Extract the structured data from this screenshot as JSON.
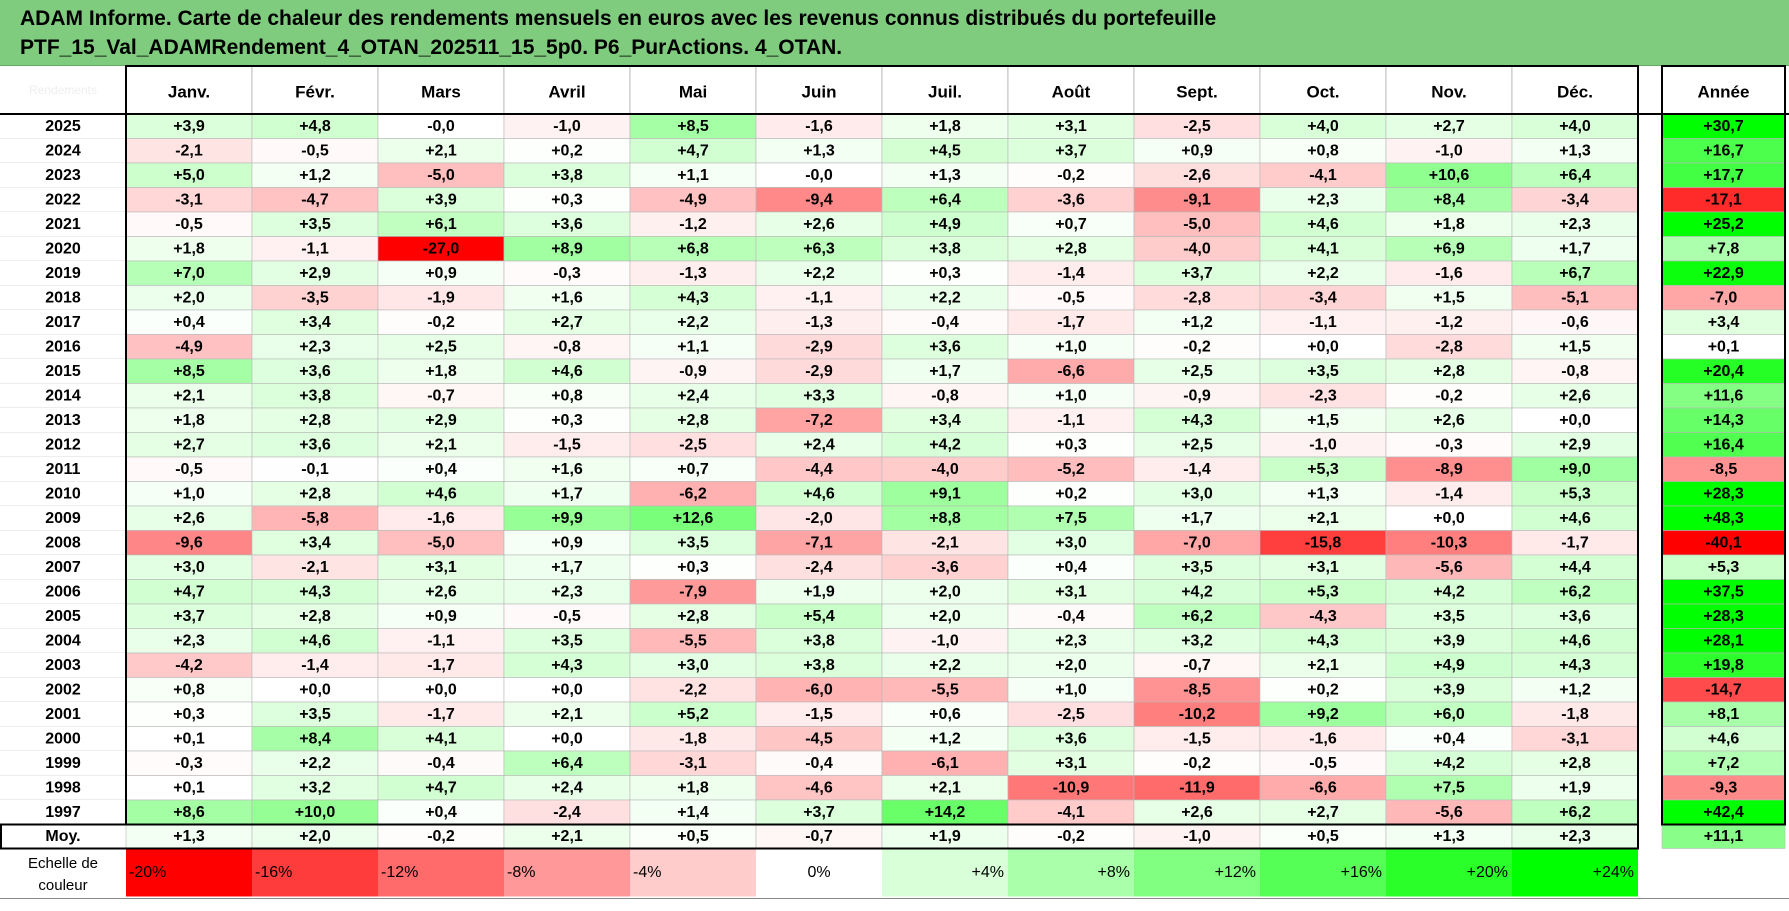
{
  "title": {
    "line1": "ADAM Informe. Carte de chaleur des rendements mensuels en euros avec les revenus connus distribués du portefeuille",
    "line2": "PTF_15_Val_ADAMRendement_4_OTAN_202511_15_5p0. P6_PurActions. 4_OTAN."
  },
  "chart_data": {
    "type": "heatmap",
    "corner_label": "Rendements",
    "months": [
      "Janv.",
      "Févr.",
      "Mars",
      "Avril",
      "Mai",
      "Juin",
      "Juil.",
      "Août",
      "Sept.",
      "Oct.",
      "Nov.",
      "Déc."
    ],
    "year_header": "Année",
    "rows": [
      {
        "year": "2025",
        "values": [
          "+3,9",
          "+4,8",
          "-0,0",
          "-1,0",
          "+8,5",
          "-1,6",
          "+1,8",
          "+3,1",
          "-2,5",
          "+4,0",
          "+2,7",
          "+4,0"
        ],
        "annual": "+30,7"
      },
      {
        "year": "2024",
        "values": [
          "-2,1",
          "-0,5",
          "+2,1",
          "+0,2",
          "+4,7",
          "+1,3",
          "+4,5",
          "+3,7",
          "+0,9",
          "+0,8",
          "-1,0",
          "+1,3"
        ],
        "annual": "+16,7"
      },
      {
        "year": "2023",
        "values": [
          "+5,0",
          "+1,2",
          "-5,0",
          "+3,8",
          "+1,1",
          "-0,0",
          "+1,3",
          "-0,2",
          "-2,6",
          "-4,1",
          "+10,6",
          "+6,4"
        ],
        "annual": "+17,7"
      },
      {
        "year": "2022",
        "values": [
          "-3,1",
          "-4,7",
          "+3,9",
          "+0,3",
          "-4,9",
          "-9,4",
          "+6,4",
          "-3,6",
          "-9,1",
          "+2,3",
          "+8,4",
          "-3,4"
        ],
        "annual": "-17,1"
      },
      {
        "year": "2021",
        "values": [
          "-0,5",
          "+3,5",
          "+6,1",
          "+3,6",
          "-1,2",
          "+2,6",
          "+4,9",
          "+0,7",
          "-5,0",
          "+4,6",
          "+1,8",
          "+2,3"
        ],
        "annual": "+25,2"
      },
      {
        "year": "2020",
        "values": [
          "+1,8",
          "-1,1",
          "-27,0",
          "+8,9",
          "+6,8",
          "+6,3",
          "+3,8",
          "+2,8",
          "-4,0",
          "+4,1",
          "+6,9",
          "+1,7"
        ],
        "annual": "+7,8"
      },
      {
        "year": "2019",
        "values": [
          "+7,0",
          "+2,9",
          "+0,9",
          "-0,3",
          "-1,3",
          "+2,2",
          "+0,3",
          "-1,4",
          "+3,7",
          "+2,2",
          "-1,6",
          "+6,7"
        ],
        "annual": "+22,9"
      },
      {
        "year": "2018",
        "values": [
          "+2,0",
          "-3,5",
          "-1,9",
          "+1,6",
          "+4,3",
          "-1,1",
          "+2,2",
          "-0,5",
          "-2,8",
          "-3,4",
          "+1,5",
          "-5,1"
        ],
        "annual": "-7,0"
      },
      {
        "year": "2017",
        "values": [
          "+0,4",
          "+3,4",
          "-0,2",
          "+2,7",
          "+2,2",
          "-1,3",
          "-0,4",
          "-1,7",
          "+1,2",
          "-1,1",
          "-1,2",
          "-0,6"
        ],
        "annual": "+3,4"
      },
      {
        "year": "2016",
        "values": [
          "-4,9",
          "+2,3",
          "+2,5",
          "-0,8",
          "+1,1",
          "-2,9",
          "+3,6",
          "+1,0",
          "-0,2",
          "+0,0",
          "-2,8",
          "+1,5"
        ],
        "annual": "+0,1"
      },
      {
        "year": "2015",
        "values": [
          "+8,5",
          "+3,6",
          "+1,8",
          "+4,6",
          "-0,9",
          "-2,9",
          "+1,7",
          "-6,6",
          "+2,5",
          "+3,5",
          "+2,8",
          "-0,8"
        ],
        "annual": "+20,4"
      },
      {
        "year": "2014",
        "values": [
          "+2,1",
          "+3,8",
          "-0,7",
          "+0,8",
          "+2,4",
          "+3,3",
          "-0,8",
          "+1,0",
          "-0,9",
          "-2,3",
          "-0,2",
          "+2,6"
        ],
        "annual": "+11,6"
      },
      {
        "year": "2013",
        "values": [
          "+1,8",
          "+2,8",
          "+2,9",
          "+0,3",
          "+2,8",
          "-7,2",
          "+3,4",
          "-1,1",
          "+4,3",
          "+1,5",
          "+2,6",
          "+0,0"
        ],
        "annual": "+14,3"
      },
      {
        "year": "2012",
        "values": [
          "+2,7",
          "+3,6",
          "+2,1",
          "-1,5",
          "-2,5",
          "+2,4",
          "+4,2",
          "+0,3",
          "+2,5",
          "-1,0",
          "-0,3",
          "+2,9"
        ],
        "annual": "+16,4"
      },
      {
        "year": "2011",
        "values": [
          "-0,5",
          "-0,1",
          "+0,4",
          "+1,6",
          "+0,7",
          "-4,4",
          "-4,0",
          "-5,2",
          "-1,4",
          "+5,3",
          "-8,9",
          "+9,0"
        ],
        "annual": "-8,5"
      },
      {
        "year": "2010",
        "values": [
          "+1,0",
          "+2,8",
          "+4,6",
          "+1,7",
          "-6,2",
          "+4,6",
          "+9,1",
          "+0,2",
          "+3,0",
          "+1,3",
          "-1,4",
          "+5,3"
        ],
        "annual": "+28,3"
      },
      {
        "year": "2009",
        "values": [
          "+2,6",
          "-5,8",
          "-1,6",
          "+9,9",
          "+12,6",
          "-2,0",
          "+8,8",
          "+7,5",
          "+1,7",
          "+2,1",
          "+0,0",
          "+4,6"
        ],
        "annual": "+48,3"
      },
      {
        "year": "2008",
        "values": [
          "-9,6",
          "+3,4",
          "-5,0",
          "+0,9",
          "+3,5",
          "-7,1",
          "-2,1",
          "+3,0",
          "-7,0",
          "-15,8",
          "-10,3",
          "-1,7"
        ],
        "annual": "-40,1"
      },
      {
        "year": "2007",
        "values": [
          "+3,0",
          "-2,1",
          "+3,1",
          "+1,7",
          "+0,3",
          "-2,4",
          "-3,6",
          "+0,4",
          "+3,5",
          "+3,1",
          "-5,6",
          "+4,4"
        ],
        "annual": "+5,3"
      },
      {
        "year": "2006",
        "values": [
          "+4,7",
          "+4,3",
          "+2,6",
          "+2,3",
          "-7,9",
          "+1,9",
          "+2,0",
          "+3,1",
          "+4,2",
          "+5,3",
          "+4,2",
          "+6,2"
        ],
        "annual": "+37,5"
      },
      {
        "year": "2005",
        "values": [
          "+3,7",
          "+2,8",
          "+0,9",
          "-0,5",
          "+2,8",
          "+5,4",
          "+2,0",
          "-0,4",
          "+6,2",
          "-4,3",
          "+3,5",
          "+3,6"
        ],
        "annual": "+28,3"
      },
      {
        "year": "2004",
        "values": [
          "+2,3",
          "+4,6",
          "-1,1",
          "+3,5",
          "-5,5",
          "+3,8",
          "-1,0",
          "+2,3",
          "+3,2",
          "+4,3",
          "+3,9",
          "+4,6"
        ],
        "annual": "+28,1"
      },
      {
        "year": "2003",
        "values": [
          "-4,2",
          "-1,4",
          "-1,7",
          "+4,3",
          "+3,0",
          "+3,8",
          "+2,2",
          "+2,0",
          "-0,7",
          "+2,1",
          "+4,9",
          "+4,3"
        ],
        "annual": "+19,8"
      },
      {
        "year": "2002",
        "values": [
          "+0,8",
          "+0,0",
          "+0,0",
          "+0,0",
          "-2,2",
          "-6,0",
          "-5,5",
          "+1,0",
          "-8,5",
          "+0,2",
          "+3,9",
          "+1,2"
        ],
        "annual": "-14,7"
      },
      {
        "year": "2001",
        "values": [
          "+0,3",
          "+3,5",
          "-1,7",
          "+2,1",
          "+5,2",
          "-1,5",
          "+0,6",
          "-2,5",
          "-10,2",
          "+9,2",
          "+6,0",
          "-1,8"
        ],
        "annual": "+8,1"
      },
      {
        "year": "2000",
        "values": [
          "+0,1",
          "+8,4",
          "+4,1",
          "+0,0",
          "-1,8",
          "-4,5",
          "+1,2",
          "+3,6",
          "-1,5",
          "-1,6",
          "+0,4",
          "-3,1"
        ],
        "annual": "+4,6"
      },
      {
        "year": "1999",
        "values": [
          "-0,3",
          "+2,2",
          "-0,4",
          "+6,4",
          "-3,1",
          "-0,4",
          "-6,1",
          "+3,1",
          "-0,2",
          "-0,5",
          "+4,2",
          "+2,8"
        ],
        "annual": "+7,2"
      },
      {
        "year": "1998",
        "values": [
          "+0,1",
          "+3,2",
          "+4,7",
          "+2,4",
          "+1,8",
          "-4,6",
          "+2,1",
          "-10,9",
          "-11,9",
          "-6,6",
          "+7,5",
          "+1,9"
        ],
        "annual": "-9,3"
      },
      {
        "year": "1997",
        "values": [
          "+8,6",
          "+10,0",
          "+0,4",
          "-2,4",
          "+1,4",
          "+3,7",
          "+14,2",
          "-4,1",
          "+2,6",
          "+2,7",
          "-5,6",
          "+6,2"
        ],
        "annual": "+42,4"
      }
    ],
    "average": {
      "label": "Moy.",
      "values": [
        "+1,3",
        "+2,0",
        "-0,2",
        "+2,1",
        "+0,5",
        "-0,7",
        "+1,9",
        "-0,2",
        "-1,0",
        "+0,5",
        "+1,3",
        "+2,3"
      ],
      "annual": "+11,1"
    },
    "color_scale": {
      "label_line1": "Echelle de",
      "label_line2": "couleur",
      "steps": [
        {
          "label": "-20%",
          "value": -20,
          "color": "#ff0000"
        },
        {
          "label": "-16%",
          "value": -16,
          "color": "#ff3c3c"
        },
        {
          "label": "-12%",
          "value": -12,
          "color": "#ff6a6a"
        },
        {
          "label": "-8%",
          "value": -8,
          "color": "#ff9999"
        },
        {
          "label": "-4%",
          "value": -4,
          "color": "#ffcccc"
        },
        {
          "label": "0%",
          "value": 0,
          "color": "#ffffff"
        },
        {
          "label": "+4%",
          "value": 4,
          "color": "#d9ffd9"
        },
        {
          "label": "+8%",
          "value": 8,
          "color": "#aaffaa"
        },
        {
          "label": "+12%",
          "value": 12,
          "color": "#80ff80"
        },
        {
          "label": "+16%",
          "value": 16,
          "color": "#55ff55"
        },
        {
          "label": "+20%",
          "value": 20,
          "color": "#2aff2a"
        },
        {
          "label": "+24%",
          "value": 24,
          "color": "#00ff00"
        }
      ]
    },
    "colors": {
      "header_bg": "#7fcc7f",
      "negative_max": "#ff0000",
      "neutral": "#ffffff",
      "positive_max": "#00ff00"
    }
  }
}
